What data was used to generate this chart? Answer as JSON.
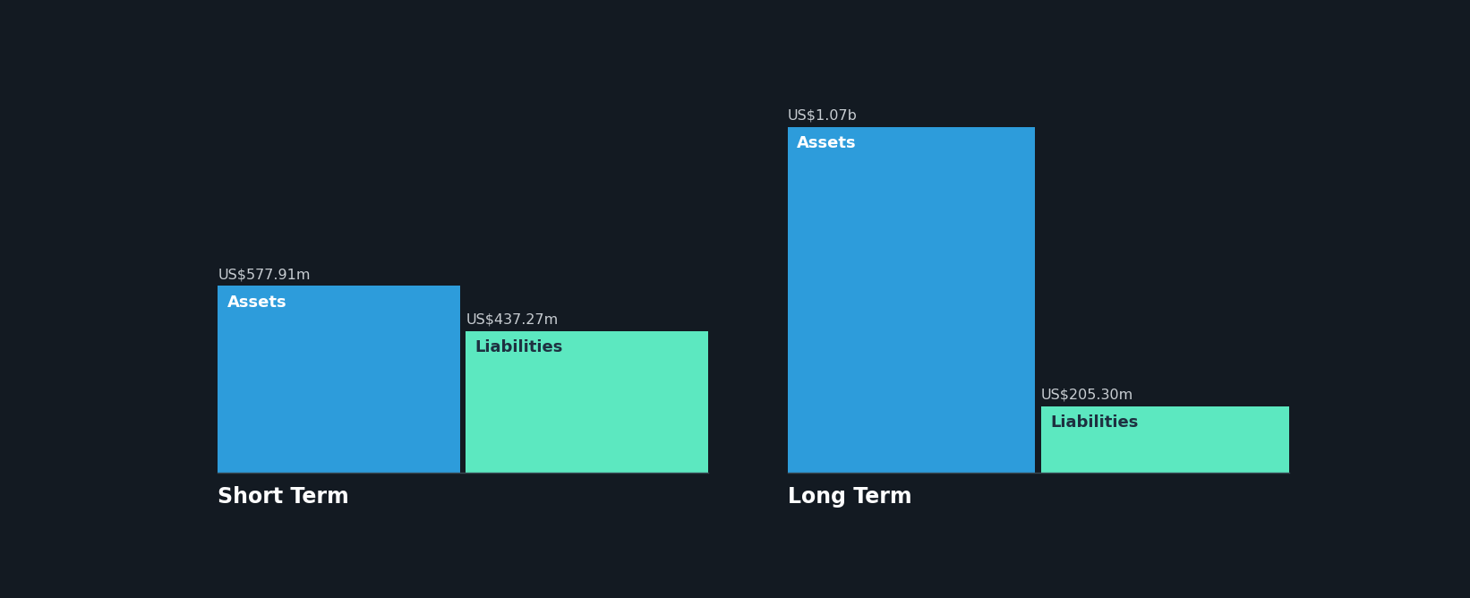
{
  "background_color": "#131a22",
  "short_term": {
    "assets_value": 577.91,
    "liabilities_value": 437.27,
    "assets_label": "US$577.91m",
    "liabilities_label": "US$437.27m",
    "assets_bar_label": "Assets",
    "liabilities_bar_label": "Liabilities",
    "section_label": "Short Term"
  },
  "long_term": {
    "assets_value": 1070,
    "liabilities_value": 205.3,
    "assets_label": "US$1.07b",
    "liabilities_label": "US$205.30m",
    "assets_bar_label": "Assets",
    "liabilities_bar_label": "Liabilities",
    "section_label": "Long Term"
  },
  "assets_color": "#2d9cdb",
  "liabilities_color": "#5ce8c0",
  "text_color": "#ffffff",
  "label_color_inside_assets": "#ffffff",
  "label_color_inside_liab": "#1e3040",
  "value_label_color": "#c8cdd2",
  "section_label_fontsize": 17,
  "bar_label_fontsize": 13,
  "value_label_fontsize": 11.5
}
